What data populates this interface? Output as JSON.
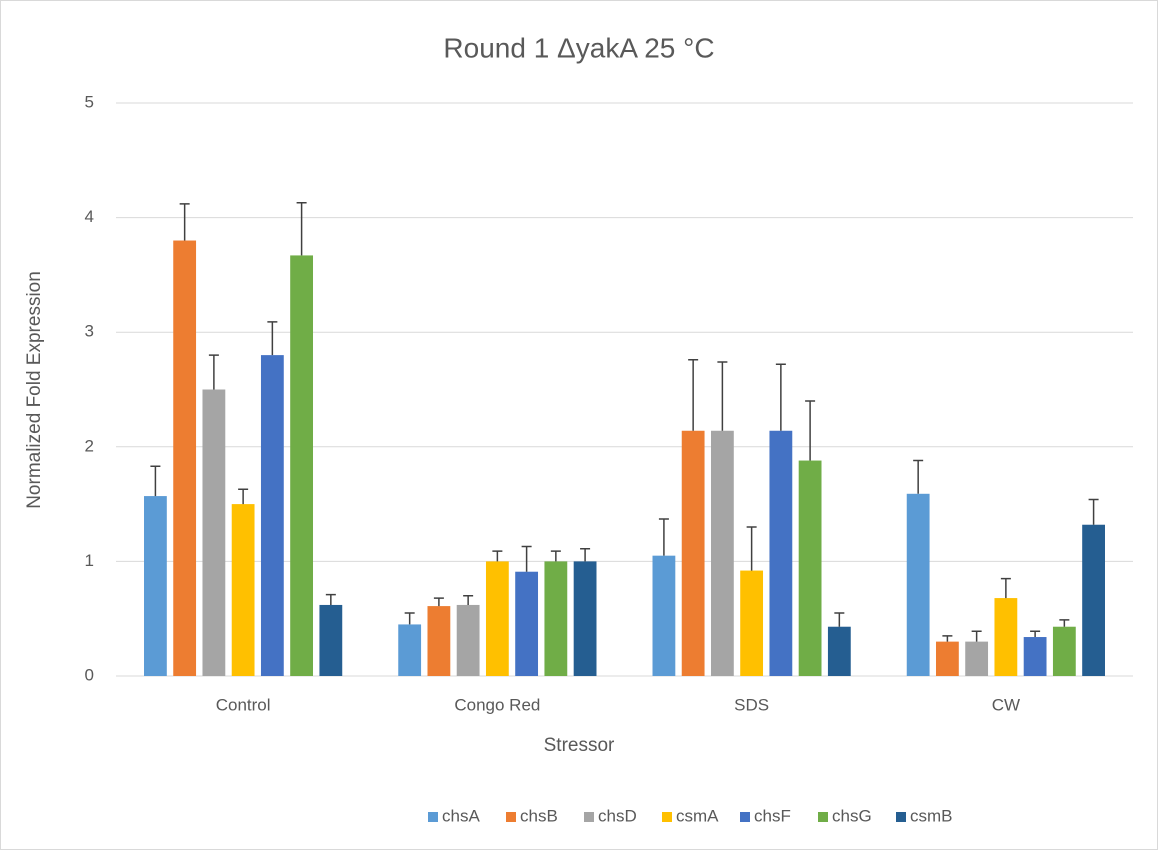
{
  "chart_data": {
    "type": "bar",
    "title": "Round 1 ΔyakA 25 °C",
    "x_label": "Stressor",
    "y_label": "Normalized Fold Expression",
    "categories": [
      "Control",
      "Congo Red",
      "SDS",
      "CW"
    ],
    "series": [
      {
        "name": "chsA",
        "color": "#5b9bd5",
        "values": [
          1.57,
          0.45,
          1.05,
          1.59
        ],
        "errors": [
          0.26,
          0.1,
          0.32,
          0.29
        ]
      },
      {
        "name": "chsB",
        "color": "#ed7d31",
        "values": [
          3.8,
          0.61,
          2.14,
          0.3
        ],
        "errors": [
          0.32,
          0.07,
          0.62,
          0.05
        ]
      },
      {
        "name": "chsD",
        "color": "#a5a5a5",
        "values": [
          2.5,
          0.62,
          2.14,
          0.3
        ],
        "errors": [
          0.3,
          0.08,
          0.6,
          0.09
        ]
      },
      {
        "name": "csmA",
        "color": "#ffc000",
        "values": [
          1.5,
          1.0,
          0.92,
          0.68
        ],
        "errors": [
          0.13,
          0.09,
          0.38,
          0.17
        ]
      },
      {
        "name": "chsF",
        "color": "#4472c4",
        "values": [
          2.8,
          0.91,
          2.14,
          0.34
        ],
        "errors": [
          0.29,
          0.22,
          0.58,
          0.05
        ]
      },
      {
        "name": "chsG",
        "color": "#70ad47",
        "values": [
          3.67,
          1.0,
          1.88,
          0.43
        ],
        "errors": [
          0.46,
          0.09,
          0.52,
          0.06
        ]
      },
      {
        "name": "csmB",
        "color": "#255e91",
        "values": [
          0.62,
          1.0,
          0.43,
          1.32
        ],
        "errors": [
          0.09,
          0.11,
          0.12,
          0.22
        ]
      }
    ],
    "ylim": [
      0,
      5
    ],
    "yticks": [
      0,
      1,
      2,
      3,
      4,
      5
    ],
    "grid": true,
    "legend": "bottom"
  }
}
